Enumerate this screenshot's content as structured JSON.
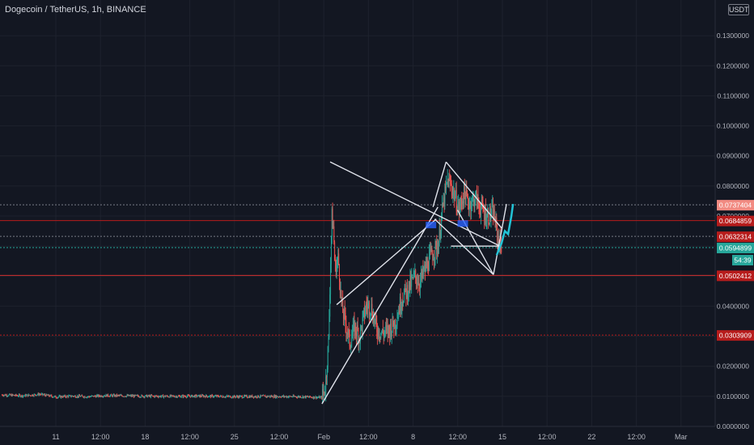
{
  "header": {
    "title": "Dogecoin / TetherUS, 1h, BINANCE",
    "currency": "USDT"
  },
  "colors": {
    "background": "#131722",
    "grid": "#1e222d",
    "axis_text": "#b2b5be",
    "up_candle": "#26a69a",
    "down_candle": "#ef5350",
    "drawing": "#e0e3eb",
    "projection": "#22c3d6",
    "level_red": "#b71c1c",
    "level_pink": "#f28b82",
    "level_teal": "#26a69a"
  },
  "chart_data": {
    "type": "candlestick",
    "symbol": "Dogecoin / TetherUS",
    "interval": "1h",
    "exchange": "BINANCE",
    "grid": true,
    "y_axis": {
      "ticks": [
        "0.0000000",
        "0.0100000",
        "0.0200000",
        "0.0300000",
        "0.0400000",
        "0.0500000",
        "0.0600000",
        "0.0700000",
        "0.0800000",
        "0.0900000",
        "0.1000000",
        "0.1100000",
        "0.1200000",
        "0.1300000"
      ],
      "ylim": [
        0.0,
        0.14
      ]
    },
    "x_axis": {
      "ticks": [
        "11",
        "12:00",
        "18",
        "12:00",
        "25",
        "12:00",
        "Feb",
        "12:00",
        "8",
        "12:00",
        "15",
        "12:00",
        "22",
        "12:00",
        "Mar"
      ],
      "day_range": [
        7.7,
        38.3
      ]
    },
    "price_path": [
      [
        7.7,
        0.0105
      ],
      [
        9,
        0.0102
      ],
      [
        10,
        0.0107
      ],
      [
        11,
        0.0098
      ],
      [
        12,
        0.0101
      ],
      [
        13,
        0.0099
      ],
      [
        14,
        0.0103
      ],
      [
        16,
        0.0101
      ],
      [
        18,
        0.01
      ],
      [
        20,
        0.0101
      ],
      [
        22,
        0.0099
      ],
      [
        24,
        0.01
      ],
      [
        26,
        0.0099
      ],
      [
        27.3,
        0.0096
      ],
      [
        27.5,
        0.013
      ],
      [
        27.7,
        0.028
      ],
      [
        27.8,
        0.05
      ],
      [
        27.9,
        0.07
      ],
      [
        28.0,
        0.066
      ],
      [
        28.1,
        0.052
      ],
      [
        28.3,
        0.056
      ],
      [
        28.5,
        0.04
      ],
      [
        28.8,
        0.033
      ],
      [
        29.0,
        0.028
      ],
      [
        29.3,
        0.033
      ],
      [
        29.6,
        0.03
      ],
      [
        30.0,
        0.04
      ],
      [
        30.3,
        0.04
      ],
      [
        30.6,
        0.033
      ],
      [
        31.0,
        0.031
      ],
      [
        31.4,
        0.032
      ],
      [
        31.8,
        0.035
      ],
      [
        32.2,
        0.043
      ],
      [
        32.6,
        0.046
      ],
      [
        33.0,
        0.05
      ],
      [
        33.3,
        0.048
      ],
      [
        33.6,
        0.052
      ],
      [
        34.0,
        0.057
      ],
      [
        34.4,
        0.06
      ],
      [
        34.7,
        0.073
      ],
      [
        35.0,
        0.082
      ],
      [
        35.3,
        0.079
      ],
      [
        35.7,
        0.072
      ],
      [
        36.0,
        0.078
      ],
      [
        36.3,
        0.074
      ],
      [
        36.7,
        0.076
      ],
      [
        37.0,
        0.073
      ],
      [
        37.4,
        0.07
      ],
      [
        37.8,
        0.071
      ],
      [
        38.1,
        0.062
      ],
      [
        38.3,
        0.06
      ]
    ],
    "price_levels": [
      {
        "value": "0.0737404",
        "price": 0.0737404,
        "color": "pink",
        "label_bg": "#f28b82",
        "line": "#787b86",
        "dash": true
      },
      {
        "value": "0.0684859",
        "price": 0.0684859,
        "color": "red",
        "label_bg": "#b71c1c",
        "line": "#b71c1c",
        "dash": false
      },
      {
        "value": "0.0632314",
        "price": 0.0632314,
        "color": "red",
        "label_bg": "#b71c1c",
        "line": "#787b86",
        "dash": true
      },
      {
        "value": "0.0594899",
        "price": 0.0594899,
        "color": "teal",
        "label_bg": "#26a69a",
        "line": "#26a69a",
        "dash": true
      },
      {
        "value": "0.0502412",
        "price": 0.0502412,
        "color": "red",
        "label_bg": "#b71c1c",
        "line": "#d32f2f",
        "dash": false
      },
      {
        "value": "0.0303909",
        "price": 0.0303909,
        "color": "red",
        "label_bg": "#b71c1c",
        "line": "#b71c1c",
        "dash": true
      }
    ],
    "countdown": "54:39",
    "drawings": [
      [
        [
          27.3,
          0.0075
        ],
        [
          34.4,
          0.073
        ]
      ],
      [
        [
          27.8,
          0.088
        ],
        [
          38.2,
          0.06
        ]
      ],
      [
        [
          28.2,
          0.0405
        ],
        [
          34.3,
          0.069
        ]
      ],
      [
        [
          34.1,
          0.073
        ],
        [
          34.9,
          0.088
        ]
      ],
      [
        [
          34.9,
          0.088
        ],
        [
          38.3,
          0.066
        ]
      ],
      [
        [
          35.2,
          0.06
        ],
        [
          38.2,
          0.06
        ]
      ],
      [
        [
          34.2,
          0.069
        ],
        [
          37.8,
          0.0505
        ]
      ],
      [
        [
          35.6,
          0.072
        ],
        [
          37.8,
          0.0505
        ]
      ],
      [
        [
          37.8,
          0.0505
        ],
        [
          38.6,
          0.074
        ]
      ]
    ],
    "projection": [
      [
        38.0,
        0.057
      ],
      [
        38.3,
        0.061
      ],
      [
        38.5,
        0.065
      ],
      [
        38.7,
        0.064
      ],
      [
        38.9,
        0.07
      ],
      [
        39.0,
        0.074
      ]
    ]
  }
}
